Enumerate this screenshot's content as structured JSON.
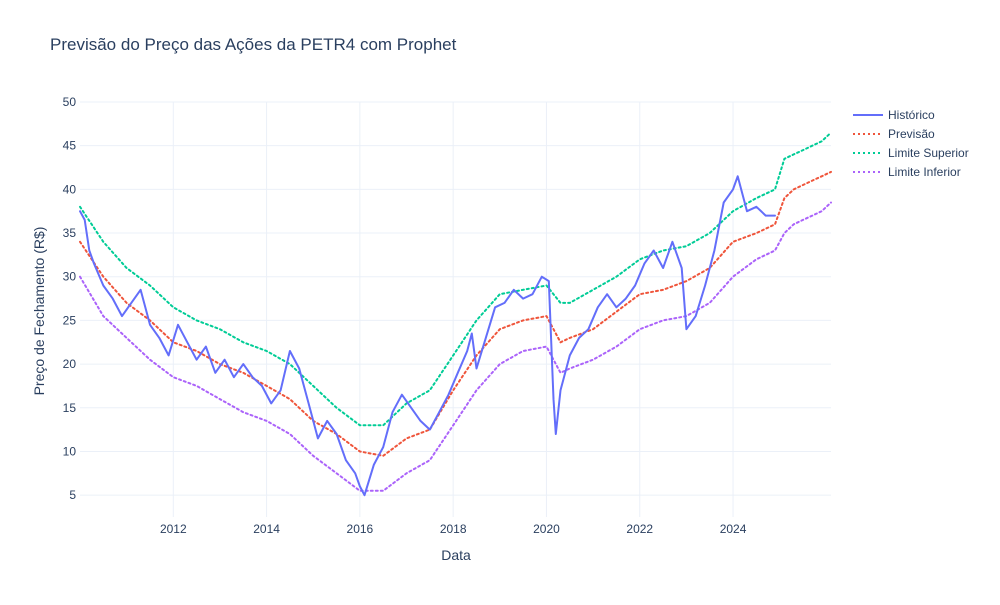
{
  "chart_data": {
    "type": "line",
    "title": "Previsão do Preço das Ações da PETR4 com Prophet",
    "xlabel": "Data",
    "ylabel": "Preço de Fechamento (R$)",
    "xlim": [
      2010.0,
      2026.1
    ],
    "ylim": [
      2.5,
      50
    ],
    "x_ticks": [
      "2012",
      "2014",
      "2016",
      "2018",
      "2020",
      "2022",
      "2024"
    ],
    "y_ticks": [
      "5",
      "10",
      "15",
      "20",
      "25",
      "30",
      "35",
      "40",
      "45",
      "50"
    ],
    "grid": true,
    "legend_position": "top-right",
    "series": [
      {
        "name": "Histórico",
        "color": "#636efa",
        "dash": "solid",
        "x": [
          2010.0,
          2010.1,
          2010.2,
          2010.3,
          2010.5,
          2010.7,
          2010.9,
          2011.1,
          2011.3,
          2011.5,
          2011.7,
          2011.9,
          2012.1,
          2012.3,
          2012.5,
          2012.7,
          2012.9,
          2013.1,
          2013.3,
          2013.5,
          2013.7,
          2013.9,
          2014.1,
          2014.3,
          2014.5,
          2014.7,
          2014.9,
          2015.1,
          2015.3,
          2015.5,
          2015.7,
          2015.9,
          2016.0,
          2016.1,
          2016.3,
          2016.5,
          2016.7,
          2016.9,
          2017.1,
          2017.3,
          2017.5,
          2017.7,
          2017.9,
          2018.1,
          2018.3,
          2018.4,
          2018.5,
          2018.7,
          2018.9,
          2019.1,
          2019.3,
          2019.5,
          2019.7,
          2019.9,
          2020.05,
          2020.15,
          2020.2,
          2020.3,
          2020.5,
          2020.7,
          2020.9,
          2021.1,
          2021.3,
          2021.5,
          2021.7,
          2021.9,
          2022.1,
          2022.3,
          2022.5,
          2022.7,
          2022.9,
          2023.0,
          2023.2,
          2023.4,
          2023.6,
          2023.8,
          2024.0,
          2024.1,
          2024.3,
          2024.5,
          2024.7,
          2024.9
        ],
        "y": [
          37.5,
          36.5,
          33.0,
          31.5,
          29.0,
          27.5,
          25.5,
          27.0,
          28.5,
          24.5,
          23.0,
          21.0,
          24.5,
          22.5,
          20.5,
          22.0,
          19.0,
          20.5,
          18.5,
          20.0,
          18.5,
          17.5,
          15.5,
          17.0,
          21.5,
          19.5,
          15.5,
          11.5,
          13.5,
          12.0,
          9.0,
          7.5,
          6.0,
          5.0,
          8.5,
          10.5,
          14.5,
          16.5,
          15.0,
          13.5,
          12.5,
          14.5,
          16.5,
          19.0,
          21.5,
          23.5,
          19.5,
          23.0,
          26.5,
          27.0,
          28.5,
          27.5,
          28.0,
          30.0,
          29.5,
          16.0,
          12.0,
          17.0,
          21.0,
          23.0,
          24.0,
          26.5,
          28.0,
          26.5,
          27.5,
          29.0,
          31.5,
          33.0,
          31.0,
          34.0,
          31.0,
          24.0,
          25.5,
          29.0,
          33.0,
          38.5,
          40.0,
          41.5,
          37.5,
          38.0,
          37.0,
          37.0
        ]
      },
      {
        "name": "Previsão",
        "color": "#ef553b",
        "dash": "dot",
        "x": [
          2010.0,
          2010.5,
          2011.0,
          2011.5,
          2012.0,
          2012.5,
          2013.0,
          2013.5,
          2014.0,
          2014.5,
          2015.0,
          2015.5,
          2016.0,
          2016.5,
          2017.0,
          2017.5,
          2018.0,
          2018.5,
          2019.0,
          2019.5,
          2020.0,
          2020.3,
          2020.5,
          2021.0,
          2021.5,
          2022.0,
          2022.5,
          2023.0,
          2023.5,
          2024.0,
          2024.5,
          2024.9,
          2025.1,
          2025.3,
          2025.5,
          2025.7,
          2025.9,
          2026.1
        ],
        "y": [
          34.0,
          30.0,
          27.0,
          25.0,
          22.5,
          21.5,
          20.0,
          19.0,
          17.5,
          16.0,
          13.5,
          12.0,
          10.0,
          9.5,
          11.5,
          12.5,
          17.0,
          21.0,
          24.0,
          25.0,
          25.5,
          22.5,
          23.0,
          24.0,
          26.0,
          28.0,
          28.5,
          29.5,
          31.0,
          34.0,
          35.0,
          36.0,
          39.0,
          40.0,
          40.5,
          41.0,
          41.5,
          42.0
        ]
      },
      {
        "name": "Limite Superior",
        "color": "#00cc96",
        "dash": "dot",
        "x": [
          2010.0,
          2010.5,
          2011.0,
          2011.5,
          2012.0,
          2012.5,
          2013.0,
          2013.5,
          2014.0,
          2014.5,
          2015.0,
          2015.5,
          2016.0,
          2016.5,
          2017.0,
          2017.5,
          2018.0,
          2018.5,
          2019.0,
          2019.5,
          2020.0,
          2020.3,
          2020.5,
          2021.0,
          2021.5,
          2022.0,
          2022.5,
          2023.0,
          2023.5,
          2024.0,
          2024.5,
          2024.9,
          2025.1,
          2025.3,
          2025.5,
          2025.7,
          2025.9,
          2026.1
        ],
        "y": [
          38.0,
          34.0,
          31.0,
          29.0,
          26.5,
          25.0,
          24.0,
          22.5,
          21.5,
          20.0,
          17.5,
          15.0,
          13.0,
          13.0,
          15.5,
          17.0,
          21.0,
          25.0,
          28.0,
          28.5,
          29.0,
          27.0,
          27.0,
          28.5,
          30.0,
          32.0,
          33.0,
          33.5,
          35.0,
          37.5,
          39.0,
          40.0,
          43.5,
          44.0,
          44.5,
          45.0,
          45.5,
          46.5
        ]
      },
      {
        "name": "Limite Inferior",
        "color": "#ab63fa",
        "dash": "dot",
        "x": [
          2010.0,
          2010.5,
          2011.0,
          2011.5,
          2012.0,
          2012.5,
          2013.0,
          2013.5,
          2014.0,
          2014.5,
          2015.0,
          2015.5,
          2016.0,
          2016.5,
          2017.0,
          2017.5,
          2018.0,
          2018.5,
          2019.0,
          2019.5,
          2020.0,
          2020.3,
          2020.5,
          2021.0,
          2021.5,
          2022.0,
          2022.5,
          2023.0,
          2023.5,
          2024.0,
          2024.5,
          2024.9,
          2025.1,
          2025.3,
          2025.5,
          2025.7,
          2025.9,
          2026.1
        ],
        "y": [
          30.0,
          25.5,
          23.0,
          20.5,
          18.5,
          17.5,
          16.0,
          14.5,
          13.5,
          12.0,
          9.5,
          7.5,
          5.5,
          5.5,
          7.5,
          9.0,
          13.0,
          17.0,
          20.0,
          21.5,
          22.0,
          19.0,
          19.5,
          20.5,
          22.0,
          24.0,
          25.0,
          25.5,
          27.0,
          30.0,
          32.0,
          33.0,
          35.0,
          36.0,
          36.5,
          37.0,
          37.5,
          38.5
        ]
      }
    ]
  }
}
